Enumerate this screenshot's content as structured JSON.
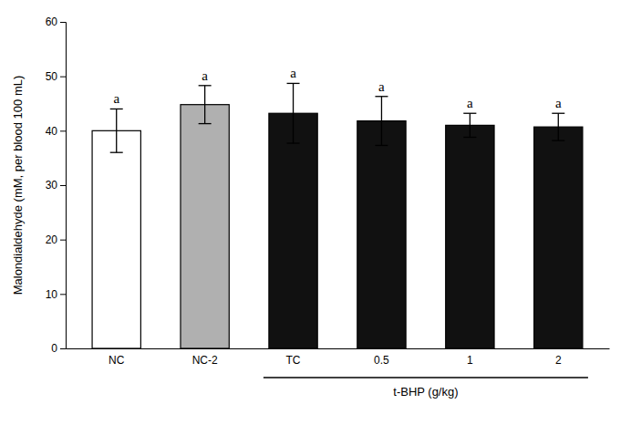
{
  "chart_data": {
    "type": "bar",
    "categories": [
      "NC",
      "NC-2",
      "TC",
      "0.5",
      "1",
      "2"
    ],
    "values": [
      40.0,
      44.8,
      43.2,
      41.8,
      41.0,
      40.7
    ],
    "errors": [
      4.0,
      3.5,
      5.5,
      4.5,
      2.2,
      2.5
    ],
    "colors": [
      "#ffffff",
      "#b0b0b0",
      "#111111",
      "#111111",
      "#111111",
      "#111111"
    ],
    "y_label": "Malondialdehyde (mM, per blood 100 mL)",
    "ylim": [
      0,
      60
    ],
    "yticks": [
      0,
      10,
      20,
      30,
      40,
      50,
      60
    ],
    "annotations": [
      {
        "text": "a",
        "category": "NC"
      },
      {
        "text": "a",
        "category": "NC-2"
      },
      {
        "text": "a",
        "category": "TC"
      },
      {
        "text": "a",
        "category": "0.5"
      },
      {
        "text": "a",
        "category": "1"
      },
      {
        "text": "a",
        "category": "2"
      },
      {
        "text": "t-BHP (g/kg)",
        "categories": [
          "TC",
          "0.5",
          "1",
          "2"
        ]
      }
    ]
  }
}
